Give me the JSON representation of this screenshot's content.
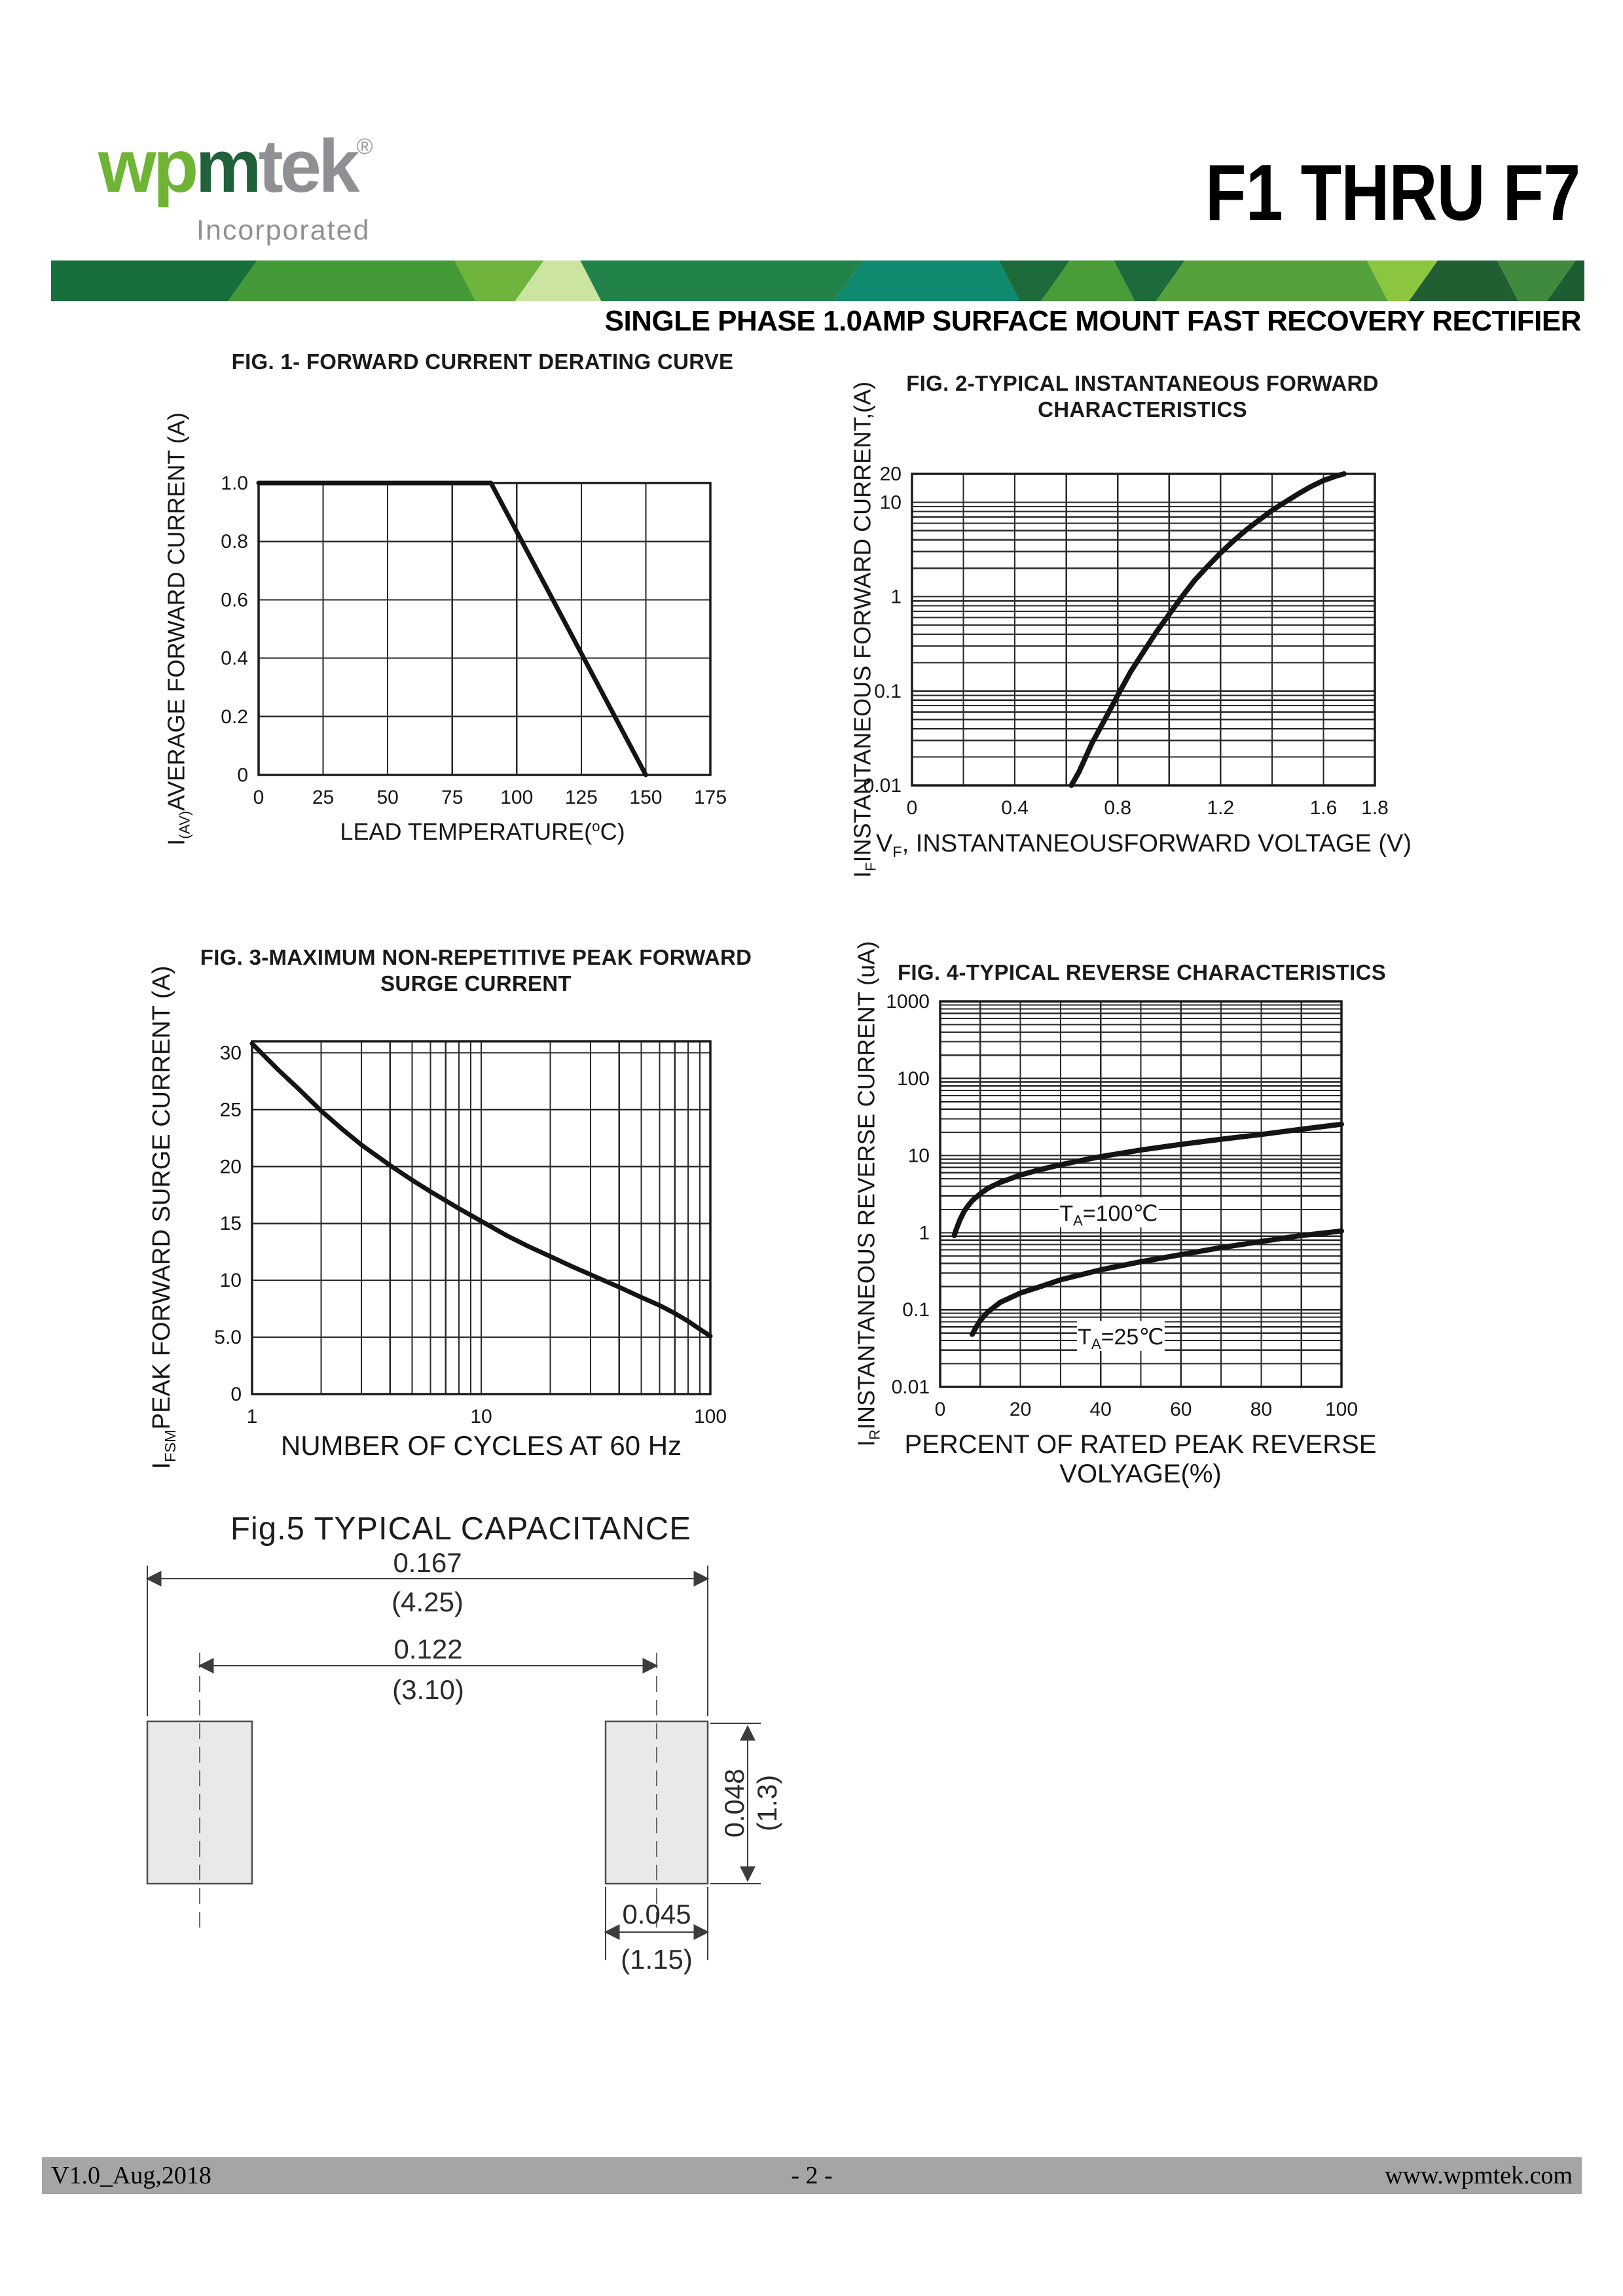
{
  "header": {
    "logo": {
      "w": "w",
      "p": "p",
      "m": "m",
      "tek": "tek",
      "reg": "®",
      "tagline": "Incorporated",
      "light_green": "#6fb434",
      "dark_green": "#20603a",
      "gray": "#8f9093"
    },
    "part_title": "F1 THRU F7",
    "subtitle": "SINGLE PHASE 1.0AMP SURFACE MOUNT FAST RECOVERY RECTIFIER",
    "band": {
      "height": 62,
      "segments": [
        {
          "to": 0.125,
          "c": "#17703c"
        },
        {
          "to": 0.27,
          "c": "#459a38"
        },
        {
          "to": 0.312,
          "c": "#6eb43d"
        },
        {
          "to": 0.352,
          "c": "#cbe4a0"
        },
        {
          "to": 0.52,
          "c": "#21834a"
        },
        {
          "to": 0.625,
          "c": "#0f8a6e"
        },
        {
          "to": 0.655,
          "c": "#1d6b3a"
        },
        {
          "to": 0.7,
          "c": "#4a9c39"
        },
        {
          "to": 0.73,
          "c": "#1d6b3a"
        },
        {
          "to": 0.865,
          "c": "#55a23c"
        },
        {
          "to": 0.895,
          "c": "#8cc63f"
        },
        {
          "to": 0.95,
          "c": "#215f33"
        },
        {
          "to": 0.985,
          "c": "#3f8a3c"
        },
        {
          "to": 1.0,
          "c": "#1e5c31"
        }
      ]
    }
  },
  "chart_data": [
    {
      "type": "line",
      "title_lines": [
        "FIG. 1- FORWARD CURRENT DERATING CURVE"
      ],
      "ylabel_parts": [
        {
          "t": "I"
        },
        {
          "t": "(AV)",
          "sub": true
        },
        {
          "t": "AVERAGE FORWARD CURRENT (A)"
        }
      ],
      "xlabel_parts": [
        {
          "t": "LEAD TEMPERATURE("
        },
        {
          "t": "o",
          "sup": true
        },
        {
          "t": "C)"
        }
      ],
      "x": {
        "type": "linear",
        "min": 0,
        "max": 175,
        "step": 25,
        "ticks": [
          {
            "v": 0,
            "l": "0"
          },
          {
            "v": 25,
            "l": "25"
          },
          {
            "v": 50,
            "l": "50"
          },
          {
            "v": 75,
            "l": "75"
          },
          {
            "v": 100,
            "l": "100"
          },
          {
            "v": 125,
            "l": "125"
          },
          {
            "v": 150,
            "l": "150"
          },
          {
            "v": 175,
            "l": "175"
          }
        ]
      },
      "y": {
        "type": "linear",
        "min": 0,
        "max": 1.0,
        "step": 0.2,
        "ticks": [
          {
            "v": 0,
            "l": "0"
          },
          {
            "v": 0.2,
            "l": "0.2"
          },
          {
            "v": 0.4,
            "l": "0.4"
          },
          {
            "v": 0.6,
            "l": "0.6"
          },
          {
            "v": 0.8,
            "l": "0.8"
          },
          {
            "v": 1.0,
            "l": "1.0"
          }
        ]
      },
      "line_width": 7,
      "series": [
        {
          "name": "derating-curve",
          "points": [
            [
              0,
              1.0
            ],
            [
              90,
              1.0
            ],
            [
              150,
              0
            ]
          ]
        }
      ],
      "annotations": []
    },
    {
      "type": "line",
      "title_lines": [
        "FIG. 2-TYPICAL INSTANTANEOUS FORWARD",
        "CHARACTERISTICS"
      ],
      "ylabel_parts": [
        {
          "t": "I"
        },
        {
          "t": "F",
          "sub": true
        },
        {
          "t": "INSTANTANEOUS FORWARD CURRENT,(A)"
        }
      ],
      "xlabel_parts": [
        {
          "t": "V"
        },
        {
          "t": "F",
          "sub": true
        },
        {
          "t": ", INSTANTANEOUSFORWARD VOLTAGE (V)"
        }
      ],
      "x": {
        "type": "linear",
        "min": 0,
        "max": 1.8,
        "step": 0.2,
        "ticks": [
          {
            "v": 0,
            "l": "0"
          },
          {
            "v": 0.4,
            "l": "0.4"
          },
          {
            "v": 0.8,
            "l": "0.8"
          },
          {
            "v": 1.2,
            "l": "1.2"
          },
          {
            "v": 1.6,
            "l": "1.6"
          },
          {
            "v": 1.8,
            "l": "1.8"
          }
        ]
      },
      "y": {
        "type": "log",
        "min": 0.01,
        "max": 20,
        "ticks": [
          {
            "v": 20,
            "l": "20"
          },
          {
            "v": 10,
            "l": "10"
          },
          {
            "v": 1,
            "l": "1"
          },
          {
            "v": 0.1,
            "l": "0.1"
          },
          {
            "v": 0.01,
            "l": "0.01"
          }
        ]
      },
      "line_width": 8,
      "series": [
        {
          "name": "vf-if",
          "points": [
            [
              0.62,
              0.01
            ],
            [
              0.65,
              0.014
            ],
            [
              0.7,
              0.028
            ],
            [
              0.75,
              0.05
            ],
            [
              0.8,
              0.09
            ],
            [
              0.85,
              0.16
            ],
            [
              0.9,
              0.26
            ],
            [
              0.95,
              0.42
            ],
            [
              1.0,
              0.65
            ],
            [
              1.05,
              1.0
            ],
            [
              1.1,
              1.5
            ],
            [
              1.15,
              2.1
            ],
            [
              1.2,
              2.9
            ],
            [
              1.25,
              3.9
            ],
            [
              1.3,
              5.1
            ],
            [
              1.35,
              6.5
            ],
            [
              1.4,
              8.2
            ],
            [
              1.45,
              10
            ],
            [
              1.5,
              12.2
            ],
            [
              1.55,
              14.6
            ],
            [
              1.6,
              17
            ],
            [
              1.65,
              19
            ],
            [
              1.68,
              20
            ]
          ]
        }
      ],
      "annotations": []
    },
    {
      "type": "line",
      "title_lines": [
        "FIG. 3-MAXIMUM NON-REPETITIVE PEAK FORWARD",
        "SURGE CURRENT"
      ],
      "ylabel_parts": [
        {
          "t": "I"
        },
        {
          "t": "FSM",
          "sub": true
        },
        {
          "t": "PEAK FORWARD SURGE CURRENT (A)"
        }
      ],
      "xlabel_parts": [
        {
          "t": "NUMBER OF CYCLES AT 60 Hz"
        }
      ],
      "x": {
        "type": "log",
        "min": 1,
        "max": 100,
        "ticks": [
          {
            "v": 1,
            "l": "1"
          },
          {
            "v": 10,
            "l": "10"
          },
          {
            "v": 100,
            "l": "100"
          }
        ]
      },
      "y": {
        "type": "linear",
        "min": 0,
        "max": 31,
        "step": 5,
        "ticks": [
          {
            "v": 0,
            "l": "0"
          },
          {
            "v": 5,
            "l": "5.0"
          },
          {
            "v": 10,
            "l": "10"
          },
          {
            "v": 15,
            "l": "15"
          },
          {
            "v": 20,
            "l": "20"
          },
          {
            "v": 25,
            "l": "25"
          },
          {
            "v": 30,
            "l": "30"
          }
        ]
      },
      "line_width": 7,
      "series": [
        {
          "name": "surge-current",
          "points": [
            [
              1,
              30.8
            ],
            [
              1.3,
              28.5
            ],
            [
              1.6,
              26.8
            ],
            [
              2,
              24.9
            ],
            [
              2.5,
              23.2
            ],
            [
              3,
              21.9
            ],
            [
              4,
              20.1
            ],
            [
              5,
              18.8
            ],
            [
              6,
              17.8
            ],
            [
              7,
              17.0
            ],
            [
              8,
              16.3
            ],
            [
              10,
              15.2
            ],
            [
              13,
              13.9
            ],
            [
              16,
              13.0
            ],
            [
              20,
              12.1
            ],
            [
              25,
              11.2
            ],
            [
              30,
              10.5
            ],
            [
              40,
              9.4
            ],
            [
              50,
              8.5
            ],
            [
              60,
              7.8
            ],
            [
              70,
              7.1
            ],
            [
              80,
              6.4
            ],
            [
              90,
              5.7
            ],
            [
              100,
              5.1
            ]
          ]
        }
      ],
      "annotations": []
    },
    {
      "type": "line",
      "title_lines": [
        "FIG. 4-TYPICAL REVERSE CHARACTERISTICS"
      ],
      "ylabel_parts": [
        {
          "t": "I"
        },
        {
          "t": "R",
          "sub": true
        },
        {
          "t": "INSTANTANEOUS REVERSE CURRENT (uA)"
        }
      ],
      "xlabel_parts": [
        {
          "t": "PERCENT OF RATED PEAK REVERSE VOLYAGE(%)"
        }
      ],
      "x": {
        "type": "linear",
        "min": 0,
        "max": 100,
        "step": 10,
        "ticks": [
          {
            "v": 0,
            "l": "0"
          },
          {
            "v": 20,
            "l": "20"
          },
          {
            "v": 40,
            "l": "40"
          },
          {
            "v": 60,
            "l": "60"
          },
          {
            "v": 80,
            "l": "80"
          },
          {
            "v": 100,
            "l": "100"
          }
        ]
      },
      "y": {
        "type": "log",
        "min": 0.01,
        "max": 1000,
        "ticks": [
          {
            "v": 1000,
            "l": "1000"
          },
          {
            "v": 100,
            "l": "100"
          },
          {
            "v": 10,
            "l": "10"
          },
          {
            "v": 1,
            "l": "1"
          },
          {
            "v": 0.1,
            "l": "0.1"
          },
          {
            "v": 0.01,
            "l": "0.01"
          }
        ]
      },
      "line_width": 8,
      "series": [
        {
          "name": "TA=100C",
          "points": [
            [
              3.5,
              0.92
            ],
            [
              4,
              1.1
            ],
            [
              5,
              1.5
            ],
            [
              6,
              1.9
            ],
            [
              7,
              2.25
            ],
            [
              8,
              2.6
            ],
            [
              10,
              3.2
            ],
            [
              12,
              3.8
            ],
            [
              15,
              4.5
            ],
            [
              20,
              5.6
            ],
            [
              25,
              6.6
            ],
            [
              30,
              7.6
            ],
            [
              35,
              8.6
            ],
            [
              40,
              9.7
            ],
            [
              50,
              11.8
            ],
            [
              60,
              14
            ],
            [
              70,
              16.3
            ],
            [
              80,
              18.8
            ],
            [
              90,
              22
            ],
            [
              100,
              25.5
            ]
          ]
        },
        {
          "name": "TA=25C",
          "points": [
            [
              8,
              0.048
            ],
            [
              9,
              0.06
            ],
            [
              10,
              0.073
            ],
            [
              12,
              0.095
            ],
            [
              15,
              0.125
            ],
            [
              20,
              0.165
            ],
            [
              25,
              0.2
            ],
            [
              30,
              0.245
            ],
            [
              40,
              0.33
            ],
            [
              50,
              0.42
            ],
            [
              60,
              0.52
            ],
            [
              70,
              0.64
            ],
            [
              80,
              0.77
            ],
            [
              90,
              0.92
            ],
            [
              100,
              1.05
            ]
          ]
        }
      ],
      "annotations": [
        {
          "parts": [
            {
              "t": "T"
            },
            {
              "t": "A",
              "sub": true
            },
            {
              "t": "=100"
            },
            {
              "t": "℃"
            }
          ],
          "x": 42,
          "y": 1.8
        },
        {
          "parts": [
            {
              "t": "T"
            },
            {
              "t": "A",
              "sub": true
            },
            {
              "t": "=25"
            },
            {
              "t": "℃"
            }
          ],
          "x": 45,
          "y": 0.045
        }
      ]
    }
  ],
  "fig5": {
    "title": "Fig.5 TYPICAL CAPACITANCE",
    "dim_overall": [
      "0.167",
      "(4.25)"
    ],
    "dim_pitch": [
      "0.122",
      "(3.10)"
    ],
    "dim_height": [
      "0.048",
      "(1.3)"
    ],
    "dim_width": [
      "0.045",
      "(1.15)"
    ],
    "pad_fill": "#e9e9e9"
  },
  "footer": {
    "left": "V1.0_Aug,2018",
    "center": "- 2 -",
    "right": "www.wpmtek.com",
    "bar_color": "#a5a5a5"
  }
}
